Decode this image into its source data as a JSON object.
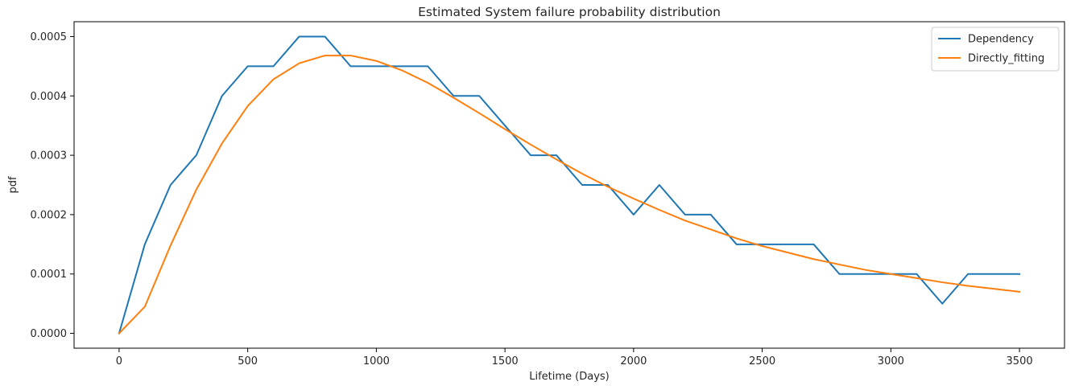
{
  "chart_data": {
    "type": "line",
    "title": "Estimated System failure probability distribution",
    "xlabel": "Lifetime (Days)",
    "ylabel": "pdf",
    "xlim": [
      -175,
      3675
    ],
    "ylim": [
      -2.5e-05,
      0.000525
    ],
    "xticks": [
      0,
      500,
      1000,
      1500,
      2000,
      2500,
      3000,
      3500
    ],
    "xtick_labels": [
      "0",
      "500",
      "1000",
      "1500",
      "2000",
      "2500",
      "3000",
      "3500"
    ],
    "yticks": [
      0,
      0.0001,
      0.0002,
      0.0003,
      0.0004,
      0.0005
    ],
    "ytick_labels": [
      "0.0000",
      "0.0001",
      "0.0002",
      "0.0003",
      "0.0004",
      "0.0005"
    ],
    "grid": false,
    "legend_position": "top-right",
    "x": [
      0,
      100,
      200,
      300,
      400,
      500,
      600,
      700,
      800,
      900,
      1000,
      1100,
      1200,
      1300,
      1400,
      1500,
      1600,
      1700,
      1800,
      1900,
      2000,
      2100,
      2200,
      2300,
      2400,
      2500,
      2600,
      2700,
      2800,
      2900,
      3000,
      3100,
      3200,
      3300,
      3400,
      3500
    ],
    "series": [
      {
        "name": "Dependency",
        "color": "#1f77b4",
        "values": [
          0,
          0.00015,
          0.00025,
          0.0003,
          0.0004,
          0.00045,
          0.00045,
          0.0005,
          0.0005,
          0.00045,
          0.00045,
          0.00045,
          0.00045,
          0.0004,
          0.0004,
          0.00035,
          0.0003,
          0.0003,
          0.00025,
          0.00025,
          0.0002,
          0.00025,
          0.0002,
          0.0002,
          0.00015,
          0.00015,
          0.00015,
          0.00015,
          0.0001,
          0.0001,
          0.0001,
          0.0001,
          5e-05,
          0.0001,
          0.0001,
          0.0001
        ]
      },
      {
        "name": "Directly_fitting",
        "color": "#ff7f0e",
        "values": [
          0,
          4.5e-05,
          0.000148,
          0.000242,
          0.00032,
          0.000383,
          0.000428,
          0.000455,
          0.000468,
          0.000468,
          0.000459,
          0.000443,
          0.000422,
          0.000397,
          0.000371,
          0.000344,
          0.000318,
          0.000293,
          0.000269,
          0.000247,
          0.000227,
          0.000208,
          0.00019,
          0.000175,
          0.00016,
          0.000147,
          0.000136,
          0.000125,
          0.000116,
          0.000107,
          0.0001,
          9.3e-05,
          8.6e-05,
          8e-05,
          7.5e-05,
          7e-05
        ]
      }
    ]
  }
}
